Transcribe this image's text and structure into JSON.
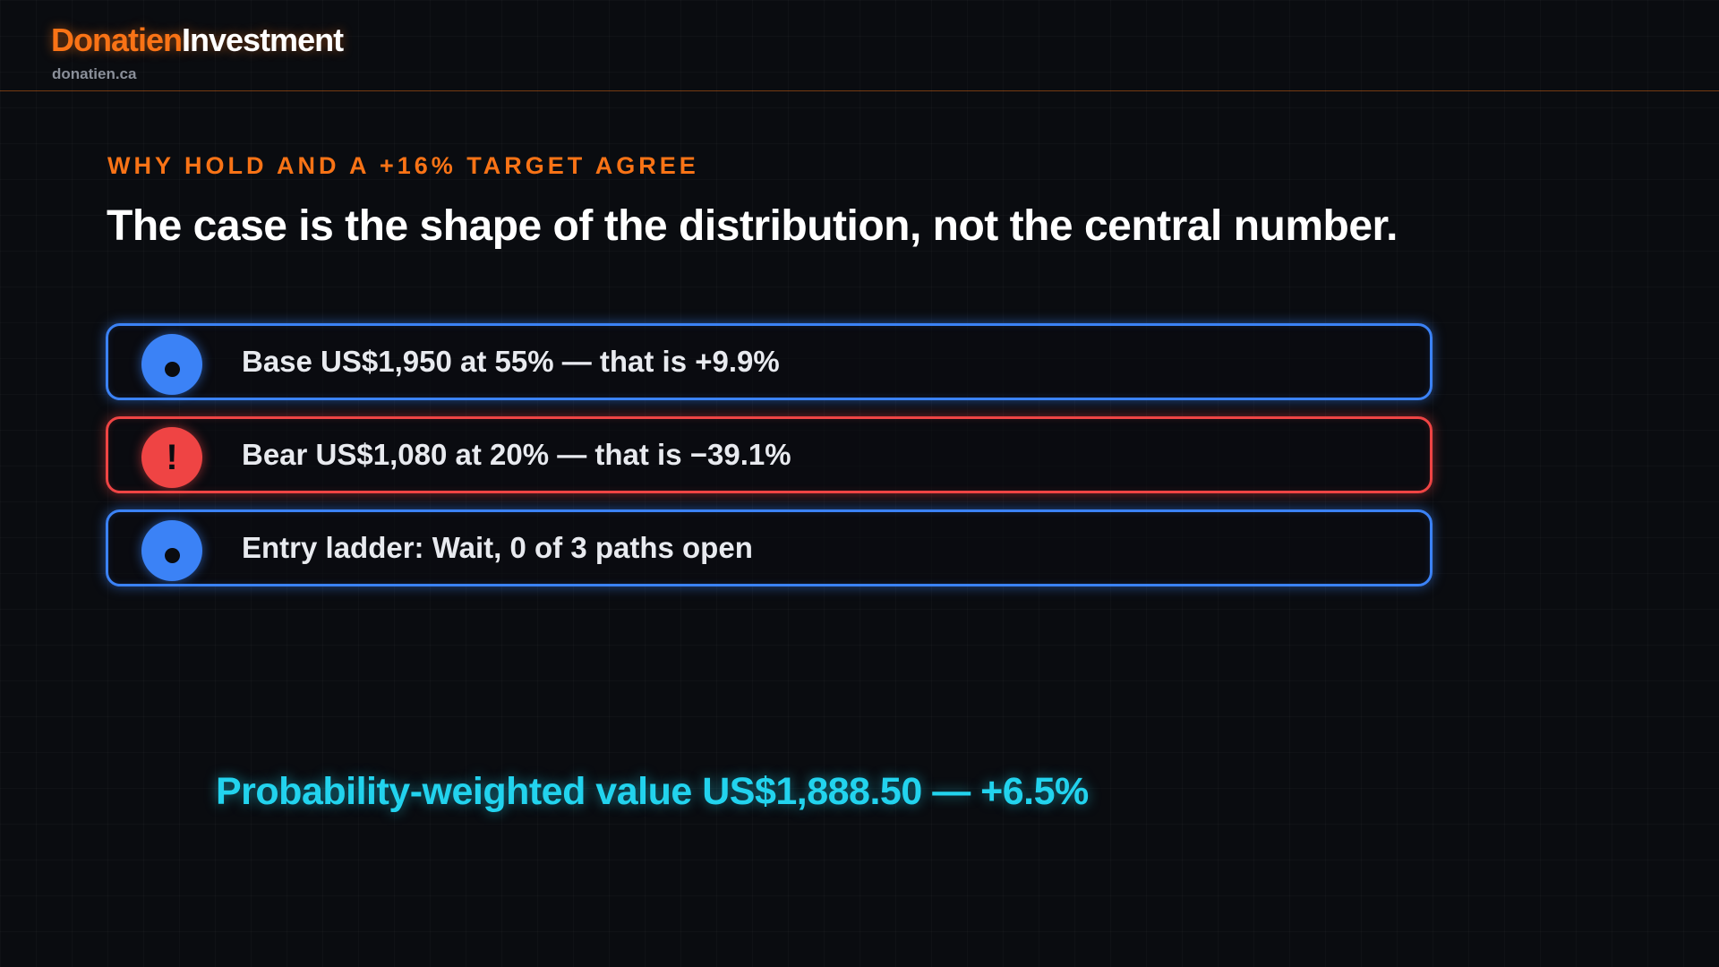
{
  "brand": {
    "name_part1": "Donatien",
    "name_part2": "Investment",
    "domain": "donatien.ca"
  },
  "slide": {
    "eyebrow": "WHY HOLD AND A +16% TARGET AGREE",
    "headline": "The case is the shape of the distribution, not the central number."
  },
  "cards": [
    {
      "icon": "dot-icon",
      "text": "Base US$1,950 at 55% — that is +9.9%",
      "color": "#3b82f6"
    },
    {
      "icon": "exclamation-icon",
      "text": "Bear US$1,080 at 20% — that is −39.1%",
      "color": "#ef4444"
    },
    {
      "icon": "dot-icon",
      "text": "Entry ladder: Wait, 0 of 3 paths open",
      "color": "#3b82f6"
    }
  ],
  "summary": {
    "text": "Probability-weighted value US$1,888.50 — +6.5%",
    "color": "#22d3ee"
  },
  "colors": {
    "accent": "#f97316",
    "background": "#0a0c10"
  }
}
